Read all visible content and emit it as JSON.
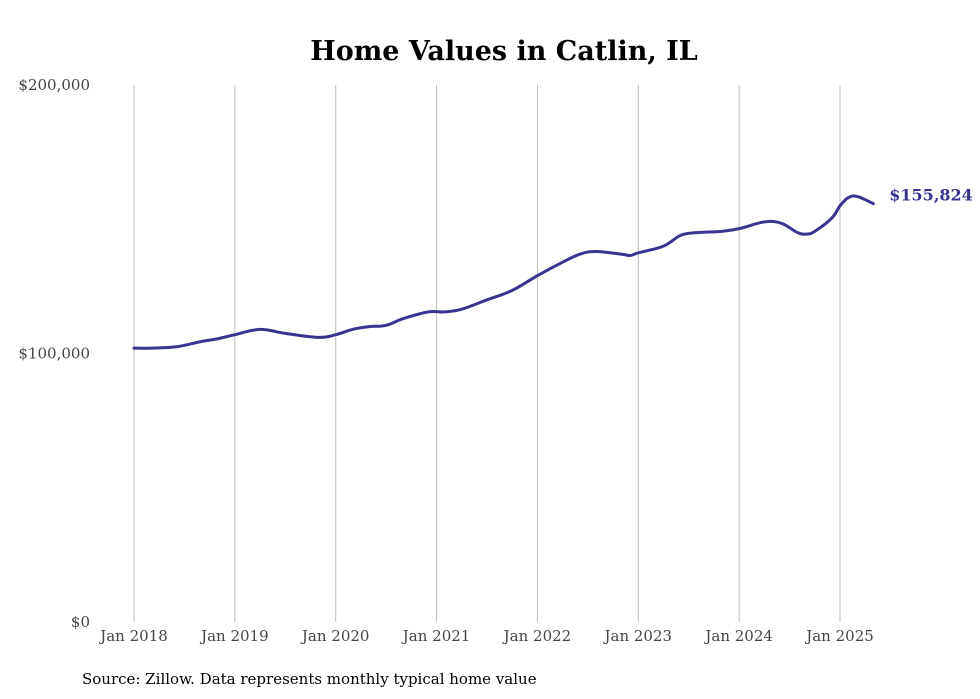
{
  "chart_data": {
    "type": "line",
    "title": "Home Values in Catlin, IL",
    "xlabel": "",
    "ylabel": "",
    "ylim": [
      0,
      200000
    ],
    "yticks": [
      {
        "value": 0,
        "label": "$0"
      },
      {
        "value": 100000,
        "label": "$100,000"
      },
      {
        "value": 200000,
        "label": "$200,000"
      }
    ],
    "xticks": [
      {
        "value": 2018,
        "label": "Jan 2018"
      },
      {
        "value": 2019,
        "label": "Jan 2019"
      },
      {
        "value": 2020,
        "label": "Jan 2020"
      },
      {
        "value": 2021,
        "label": "Jan 2021"
      },
      {
        "value": 2022,
        "label": "Jan 2022"
      },
      {
        "value": 2023,
        "label": "Jan 2023"
      },
      {
        "value": 2024,
        "label": "Jan 2024"
      },
      {
        "value": 2025,
        "label": "Jan 2025"
      }
    ],
    "grid": "vertical",
    "line_color": "#38348f",
    "end_label": "$155,824",
    "source": "Source: Zillow. Data represents monthly typical home value",
    "series": [
      {
        "x": [
          2018.0,
          2018.17,
          2018.42,
          2018.67,
          2018.83,
          2019.0,
          2019.25,
          2019.5,
          2019.83,
          2020.0,
          2020.17,
          2020.33,
          2020.5,
          2020.67,
          2020.92,
          2021.08,
          2021.25,
          2021.5,
          2021.75,
          2022.0,
          2022.25,
          2022.42,
          2022.58,
          2022.83,
          2022.92,
          2023.0,
          2023.25,
          2023.42,
          2023.58,
          2023.83,
          2024.0,
          2024.25,
          2024.42,
          2024.58,
          2024.67,
          2024.75,
          2024.92,
          2025.0,
          2025.08,
          2025.17,
          2025.33
        ],
        "y": [
          102000,
          102000,
          102500,
          104500,
          105500,
          107000,
          109000,
          107500,
          106000,
          107000,
          109000,
          110000,
          110500,
          113000,
          115500,
          115500,
          116500,
          120000,
          123500,
          129000,
          134000,
          137000,
          138000,
          137000,
          136500,
          137500,
          140000,
          144000,
          145000,
          145500,
          146500,
          149000,
          148500,
          145000,
          144500,
          145500,
          150500,
          155000,
          158000,
          158500,
          155824
        ]
      }
    ]
  }
}
